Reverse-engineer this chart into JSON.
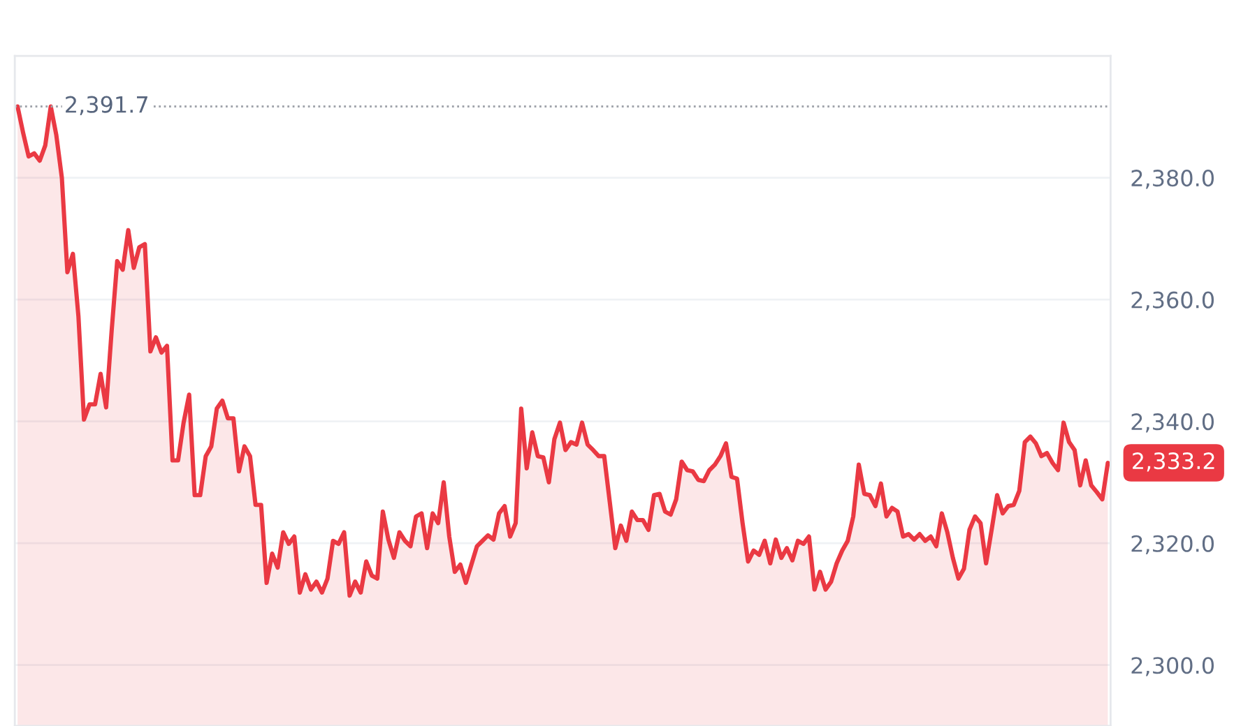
{
  "chart_data": {
    "type": "area",
    "color": "#ea3943",
    "categories": [
      null,
      null,
      null,
      null,
      null,
      null,
      null,
      null,
      null,
      null,
      null,
      null,
      null,
      null,
      null,
      null,
      null,
      null,
      null,
      null,
      null,
      null,
      null,
      null,
      null,
      null,
      null,
      null,
      null,
      null,
      null,
      null,
      null,
      null,
      null,
      null,
      null,
      null,
      null,
      null,
      null,
      null,
      null,
      null,
      null,
      null,
      null,
      null,
      null,
      null,
      null,
      null,
      null,
      null,
      null,
      null,
      null,
      null,
      null,
      null,
      null,
      null,
      null,
      null,
      null,
      null,
      null,
      null,
      null,
      null,
      null,
      null,
      null,
      null,
      null,
      null,
      null,
      null,
      null,
      null,
      null,
      null,
      null,
      null,
      null,
      null,
      null,
      null,
      null,
      null,
      null,
      null,
      null,
      null,
      null,
      null,
      null,
      null,
      null,
      null,
      null,
      null,
      null,
      null,
      null,
      null,
      null,
      null,
      null,
      null,
      null,
      null,
      null,
      null,
      null,
      null,
      null,
      null,
      null,
      null,
      null,
      null,
      null,
      null,
      null,
      null,
      null,
      null,
      null,
      null,
      null,
      null,
      null,
      null,
      null,
      null,
      null,
      null,
      null,
      null,
      null,
      null,
      null,
      null,
      null,
      null,
      null,
      null,
      null,
      null,
      null,
      null,
      null,
      null,
      null,
      null,
      null,
      null,
      null,
      null,
      null,
      null,
      null,
      null,
      null,
      null,
      null,
      null,
      null,
      null,
      null,
      null,
      null,
      null,
      null,
      null,
      null,
      null,
      null,
      null,
      null,
      null,
      null,
      null,
      null,
      null,
      null,
      null,
      null,
      null,
      null,
      null,
      null,
      null,
      null,
      null,
      null,
      null
    ],
    "values": [
      2391.7,
      2387.4,
      2383.5,
      2384,
      2382.8,
      2385.3,
      2391.7,
      2387,
      2380,
      2364.5,
      2367.5,
      2357.2,
      2340.3,
      2342.8,
      2342.8,
      2347.8,
      2342.3,
      2354.9,
      2366.3,
      2364.9,
      2371.4,
      2365.2,
      2368.6,
      2369.1,
      2351.5,
      2353.8,
      2351.3,
      2352.4,
      2333.6,
      2333.6,
      2339.8,
      2344.4,
      2327.9,
      2327.9,
      2334.3,
      2335.9,
      2342.1,
      2343.4,
      2340.5,
      2340.5,
      2331.8,
      2335.9,
      2334.3,
      2326.3,
      2326.3,
      2313.5,
      2318.3,
      2316,
      2321.8,
      2319.9,
      2321.1,
      2311.9,
      2314.9,
      2312.4,
      2313.7,
      2311.9,
      2314.2,
      2320.4,
      2319.9,
      2321.8,
      2311.4,
      2313.7,
      2311.9,
      2317,
      2314.7,
      2314.2,
      2325.2,
      2320.6,
      2317.6,
      2321.8,
      2320.4,
      2319.5,
      2324.4,
      2324.9,
      2319.2,
      2324.9,
      2323.3,
      2330,
      2321.1,
      2315.3,
      2316.5,
      2313.5,
      2316.5,
      2319.5,
      2320.4,
      2321.3,
      2320.6,
      2324.9,
      2326.1,
      2321.1,
      2323.3,
      2342.1,
      2332.3,
      2338.2,
      2334.3,
      2334.1,
      2330,
      2337.1,
      2339.8,
      2335.3,
      2336.6,
      2336.2,
      2339.8,
      2336.2,
      2335.3,
      2334.3,
      2334.3,
      2326.8,
      2319.2,
      2322.9,
      2320.4,
      2325.2,
      2323.8,
      2323.8,
      2322.2,
      2327.9,
      2328.1,
      2325.2,
      2324.7,
      2327.2,
      2333.4,
      2332,
      2331.8,
      2330.4,
      2330.2,
      2332,
      2332.9,
      2334.3,
      2336.4,
      2330.9,
      2330.6,
      2323.3,
      2317,
      2318.8,
      2318.1,
      2320.4,
      2316.7,
      2320.6,
      2317.6,
      2319.2,
      2317.2,
      2320.4,
      2319.9,
      2321.1,
      2312.4,
      2315.3,
      2312.4,
      2313.7,
      2316.7,
      2318.8,
      2320.4,
      2324.4,
      2332.9,
      2328.1,
      2327.9,
      2326.1,
      2329.8,
      2324.4,
      2325.8,
      2325.2,
      2321.1,
      2321.5,
      2320.6,
      2321.5,
      2320.4,
      2321.1,
      2319.5,
      2324.9,
      2321.8,
      2317.6,
      2314.2,
      2315.8,
      2322.2,
      2324.4,
      2323.3,
      2316.7,
      2322.2,
      2327.9,
      2324.9,
      2326.1,
      2326.3,
      2328.6,
      2336.6,
      2337.5,
      2336.4,
      2334.3,
      2334.8,
      2333.2,
      2332,
      2339.8,
      2336.6,
      2335.3,
      2329.5,
      2333.6,
      2329.5,
      2328.4,
      2327.2,
      2333.2
    ],
    "value_labels": [
      null,
      null,
      null,
      null,
      null,
      null,
      null,
      null,
      null,
      null,
      null,
      null,
      null,
      null,
      null,
      null,
      null,
      null,
      null,
      null,
      null,
      null,
      null,
      null,
      null,
      null,
      null,
      null,
      null,
      null,
      null,
      null,
      null,
      null,
      null,
      null,
      null,
      null,
      null,
      null,
      null,
      null,
      null,
      null,
      null,
      null,
      null,
      null,
      null,
      null,
      null,
      null,
      null,
      null,
      null,
      null,
      null,
      null,
      null,
      null,
      null,
      null,
      null,
      null,
      null,
      null,
      null,
      null,
      null,
      null,
      null,
      null,
      null,
      null,
      null,
      null,
      null,
      null,
      null,
      null,
      null,
      null,
      null,
      null,
      null,
      null,
      null,
      null,
      null,
      null,
      null,
      null,
      null,
      null,
      null,
      null,
      null,
      null,
      null,
      null,
      null,
      null,
      null,
      null,
      null,
      null,
      null,
      null,
      null,
      null,
      null,
      null,
      null,
      null,
      null,
      null,
      null,
      null,
      null,
      null,
      null,
      null,
      null,
      null,
      null,
      null,
      null,
      null,
      null,
      null,
      null,
      null,
      null,
      null,
      null,
      null,
      null,
      null,
      null,
      null,
      null,
      null,
      null,
      null,
      null,
      null,
      null,
      null,
      null,
      null,
      null,
      null,
      null,
      null,
      null,
      null,
      null,
      null,
      null,
      null,
      null,
      null,
      null,
      null,
      null,
      null,
      null,
      null,
      null,
      null,
      null,
      null,
      null,
      null,
      null,
      null,
      null,
      null,
      null,
      null,
      null,
      null,
      null,
      null,
      null,
      null,
      null,
      null,
      null,
      null,
      null,
      null,
      null,
      null,
      null,
      null,
      null,
      "2,333.2"
    ],
    "ylim": [
      2290,
      2400
    ],
    "yticks": [
      {
        "value": 2300,
        "label": "2,300.0"
      },
      {
        "value": 2320,
        "label": "2,320.0"
      },
      {
        "value": 2340,
        "label": "2,340.0"
      },
      {
        "value": 2360,
        "label": "2,360.0"
      },
      {
        "value": 2380,
        "label": "2,380.0"
      }
    ],
    "ref_lines": [
      {
        "axis": "y",
        "value": 2391.7,
        "label": "2,391.7",
        "color": "#a0a4ab",
        "line_style": "dotted"
      }
    ],
    "grid": "y",
    "tick_labels": "y"
  }
}
